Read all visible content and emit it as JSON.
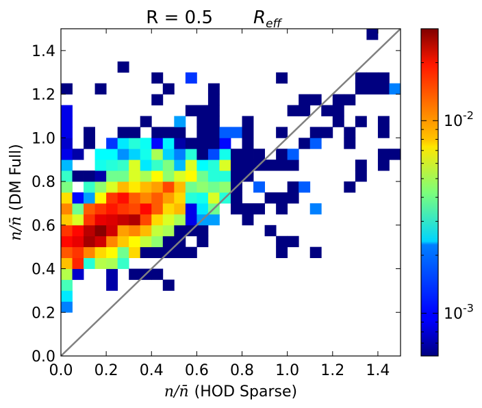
{
  "chart_data": {
    "type": "heatmap",
    "title": "R = 0.5",
    "title_math": "R",
    "title_math_sub": "eff",
    "xlabel_math": "n/n̄",
    "xlabel": "(HOD Sparse)",
    "ylabel_math": "n/n̄",
    "ylabel": "(DM Full)",
    "xlim": [
      0,
      1.5
    ],
    "ylim": [
      0,
      1.5
    ],
    "bin_size": 0.05,
    "xticks": [
      "0.0",
      "0.2",
      "0.4",
      "0.6",
      "0.8",
      "1.0",
      "1.2",
      "1.4"
    ],
    "yticks": [
      "0.0",
      "0.2",
      "0.4",
      "0.6",
      "0.8",
      "1.0",
      "1.2",
      "1.4"
    ],
    "colorbar": {
      "scale": "log",
      "min": 0.0006,
      "max": 0.03,
      "tick_values": [
        0.001,
        0.01
      ],
      "tick_base": "10",
      "tick_exponents": [
        "-3",
        "-2"
      ],
      "colormap": "jet"
    },
    "diagonal_line": {
      "from": [
        0,
        0
      ],
      "to": [
        1.5,
        1.5
      ],
      "color": "#808080"
    },
    "cells": [
      [
        0.0,
        0.2,
        0.0016
      ],
      [
        0.0,
        0.25,
        0.0024
      ],
      [
        0.0,
        0.3,
        0.0034
      ],
      [
        0.0,
        0.35,
        0.0052
      ],
      [
        0.0,
        0.4,
        0.0088
      ],
      [
        0.0,
        0.45,
        0.0132
      ],
      [
        0.0,
        0.5,
        0.018
      ],
      [
        0.0,
        0.55,
        0.015
      ],
      [
        0.0,
        0.6,
        0.0085
      ],
      [
        0.0,
        0.65,
        0.011
      ],
      [
        0.0,
        0.7,
        0.0078
      ],
      [
        0.0,
        0.75,
        0.0042
      ],
      [
        0.0,
        0.8,
        0.0032
      ],
      [
        0.0,
        0.85,
        0.002
      ],
      [
        0.0,
        0.9,
        0.0009
      ],
      [
        0.0,
        0.95,
        0.0008
      ],
      [
        0.0,
        1.0,
        0.0009
      ],
      [
        0.0,
        1.05,
        0.0009
      ],
      [
        0.0,
        1.1,
        0.0009
      ],
      [
        0.0,
        1.2,
        0.0006
      ],
      [
        0.05,
        0.35,
        0.0008
      ],
      [
        0.05,
        0.4,
        0.016
      ],
      [
        0.05,
        0.45,
        0.015
      ],
      [
        0.05,
        0.5,
        0.02
      ],
      [
        0.05,
        0.55,
        0.018
      ],
      [
        0.05,
        0.6,
        0.006
      ],
      [
        0.05,
        0.65,
        0.004
      ],
      [
        0.05,
        0.7,
        0.001
      ],
      [
        0.05,
        0.8,
        0.0006
      ],
      [
        0.05,
        0.9,
        0.0007
      ],
      [
        0.1,
        0.4,
        0.003
      ],
      [
        0.1,
        0.45,
        0.011
      ],
      [
        0.1,
        0.5,
        0.026
      ],
      [
        0.1,
        0.55,
        0.024
      ],
      [
        0.1,
        0.6,
        0.015
      ],
      [
        0.1,
        0.65,
        0.013
      ],
      [
        0.1,
        0.7,
        0.0018
      ],
      [
        0.1,
        0.75,
        0.0032
      ],
      [
        0.1,
        0.8,
        0.0006
      ],
      [
        0.1,
        0.95,
        0.0006
      ],
      [
        0.1,
        1.0,
        0.0006
      ],
      [
        0.15,
        0.4,
        0.0052
      ],
      [
        0.15,
        0.45,
        0.008
      ],
      [
        0.15,
        0.5,
        0.022
      ],
      [
        0.15,
        0.55,
        0.029
      ],
      [
        0.15,
        0.6,
        0.02
      ],
      [
        0.15,
        0.65,
        0.015
      ],
      [
        0.15,
        0.7,
        0.007
      ],
      [
        0.15,
        0.75,
        0.0045
      ],
      [
        0.15,
        0.8,
        0.0007
      ],
      [
        0.15,
        0.85,
        0.0028
      ],
      [
        0.15,
        0.9,
        0.0026
      ],
      [
        0.15,
        1.2,
        0.0006
      ],
      [
        0.2,
        0.3,
        0.0007
      ],
      [
        0.2,
        0.35,
        0.0007
      ],
      [
        0.2,
        0.4,
        0.005
      ],
      [
        0.2,
        0.45,
        0.007
      ],
      [
        0.2,
        0.5,
        0.011
      ],
      [
        0.2,
        0.55,
        0.022
      ],
      [
        0.2,
        0.6,
        0.021
      ],
      [
        0.2,
        0.65,
        0.017
      ],
      [
        0.2,
        0.7,
        0.015
      ],
      [
        0.2,
        0.75,
        0.006
      ],
      [
        0.2,
        0.8,
        0.004
      ],
      [
        0.2,
        0.85,
        0.003
      ],
      [
        0.2,
        0.9,
        0.0026
      ],
      [
        0.2,
        0.95,
        0.0012
      ],
      [
        0.25,
        0.4,
        0.0032
      ],
      [
        0.25,
        0.45,
        0.004
      ],
      [
        0.25,
        0.5,
        0.0085
      ],
      [
        0.25,
        0.55,
        0.01
      ],
      [
        0.25,
        0.6,
        0.023
      ],
      [
        0.25,
        0.65,
        0.015
      ],
      [
        0.25,
        0.7,
        0.0175
      ],
      [
        0.25,
        0.75,
        0.009
      ],
      [
        0.25,
        0.8,
        0.004
      ],
      [
        0.25,
        0.85,
        0.0032
      ],
      [
        0.25,
        0.9,
        0.0017
      ],
      [
        0.25,
        0.95,
        0.0024
      ],
      [
        0.25,
        1.0,
        0.0006
      ],
      [
        0.25,
        1.3,
        0.0006
      ],
      [
        0.3,
        0.35,
        0.0006
      ],
      [
        0.3,
        0.45,
        0.008
      ],
      [
        0.3,
        0.5,
        0.007
      ],
      [
        0.3,
        0.55,
        0.011
      ],
      [
        0.3,
        0.6,
        0.025
      ],
      [
        0.3,
        0.65,
        0.014
      ],
      [
        0.3,
        0.7,
        0.013
      ],
      [
        0.3,
        0.75,
        0.0075
      ],
      [
        0.3,
        0.8,
        0.006
      ],
      [
        0.3,
        0.85,
        0.006
      ],
      [
        0.3,
        0.9,
        0.0022
      ],
      [
        0.3,
        0.95,
        0.003
      ],
      [
        0.3,
        1.0,
        0.0006
      ],
      [
        0.35,
        0.35,
        0.0006
      ],
      [
        0.35,
        0.45,
        0.0006
      ],
      [
        0.35,
        0.5,
        0.0055
      ],
      [
        0.35,
        0.55,
        0.009
      ],
      [
        0.35,
        0.6,
        0.014
      ],
      [
        0.35,
        0.65,
        0.018
      ],
      [
        0.35,
        0.7,
        0.011
      ],
      [
        0.35,
        0.75,
        0.009
      ],
      [
        0.35,
        0.8,
        0.005
      ],
      [
        0.35,
        0.85,
        0.0024
      ],
      [
        0.35,
        0.9,
        0.0028
      ],
      [
        0.35,
        0.95,
        0.0027
      ],
      [
        0.35,
        1.05,
        0.0006
      ],
      [
        0.4,
        0.35,
        0.0006
      ],
      [
        0.4,
        0.45,
        0.0006
      ],
      [
        0.4,
        0.5,
        0.0045
      ],
      [
        0.4,
        0.55,
        0.0055
      ],
      [
        0.4,
        0.6,
        0.008
      ],
      [
        0.4,
        0.65,
        0.013
      ],
      [
        0.4,
        0.7,
        0.013
      ],
      [
        0.4,
        0.75,
        0.01
      ],
      [
        0.4,
        0.8,
        0.007
      ],
      [
        0.4,
        0.85,
        0.0032
      ],
      [
        0.4,
        0.9,
        0.005
      ],
      [
        0.4,
        0.95,
        0.001
      ],
      [
        0.4,
        1.0,
        0.0006
      ],
      [
        0.4,
        1.15,
        0.0006
      ],
      [
        0.4,
        1.25,
        0.0006
      ],
      [
        0.45,
        0.3,
        0.0006
      ],
      [
        0.45,
        0.45,
        0.0006
      ],
      [
        0.45,
        0.5,
        0.0006
      ],
      [
        0.45,
        0.55,
        0.005
      ],
      [
        0.45,
        0.6,
        0.006
      ],
      [
        0.45,
        0.65,
        0.008
      ],
      [
        0.45,
        0.7,
        0.01
      ],
      [
        0.45,
        0.75,
        0.014
      ],
      [
        0.45,
        0.8,
        0.0045
      ],
      [
        0.45,
        0.85,
        0.0042
      ],
      [
        0.45,
        0.9,
        0.0022
      ],
      [
        0.45,
        0.95,
        0.0025
      ],
      [
        0.45,
        1.0,
        0.0006
      ],
      [
        0.45,
        1.2,
        0.0006
      ],
      [
        0.5,
        0.45,
        0.0006
      ],
      [
        0.5,
        0.5,
        0.0006
      ],
      [
        0.5,
        0.55,
        0.0006
      ],
      [
        0.5,
        0.6,
        0.005
      ],
      [
        0.5,
        0.65,
        0.009
      ],
      [
        0.5,
        0.7,
        0.008
      ],
      [
        0.5,
        0.75,
        0.009
      ],
      [
        0.5,
        0.8,
        0.006
      ],
      [
        0.5,
        0.85,
        0.002
      ],
      [
        0.5,
        0.9,
        0.0016
      ],
      [
        0.5,
        0.95,
        0.0007
      ],
      [
        0.5,
        1.0,
        0.0006
      ],
      [
        0.5,
        1.05,
        0.0018
      ],
      [
        0.55,
        0.45,
        0.0006
      ],
      [
        0.55,
        0.55,
        0.0006
      ],
      [
        0.55,
        0.6,
        0.0009
      ],
      [
        0.55,
        0.65,
        0.0009
      ],
      [
        0.55,
        0.7,
        0.003
      ],
      [
        0.55,
        0.75,
        0.004
      ],
      [
        0.55,
        0.8,
        0.007
      ],
      [
        0.55,
        0.85,
        0.006
      ],
      [
        0.55,
        0.9,
        0.003
      ],
      [
        0.55,
        0.95,
        0.0006
      ],
      [
        0.55,
        1.1,
        0.0006
      ],
      [
        0.55,
        1.25,
        0.0012
      ],
      [
        0.6,
        0.5,
        0.0006
      ],
      [
        0.6,
        0.55,
        0.0006
      ],
      [
        0.6,
        0.6,
        0.0018
      ],
      [
        0.6,
        0.65,
        0.0024
      ],
      [
        0.6,
        0.7,
        0.0028
      ],
      [
        0.6,
        0.75,
        0.0045
      ],
      [
        0.6,
        0.8,
        0.004
      ],
      [
        0.6,
        0.85,
        0.0026
      ],
      [
        0.6,
        0.9,
        0.0006
      ],
      [
        0.6,
        0.95,
        0.0006
      ],
      [
        0.6,
        1.0,
        0.0006
      ],
      [
        0.6,
        1.05,
        0.0006
      ],
      [
        0.6,
        1.1,
        0.0006
      ],
      [
        0.65,
        0.6,
        0.0018
      ],
      [
        0.65,
        0.65,
        0.004
      ],
      [
        0.65,
        0.7,
        0.006
      ],
      [
        0.65,
        0.75,
        0.004
      ],
      [
        0.65,
        0.8,
        0.003
      ],
      [
        0.65,
        0.85,
        0.003
      ],
      [
        0.65,
        0.9,
        0.0013
      ],
      [
        0.65,
        0.95,
        0.0006
      ],
      [
        0.65,
        1.0,
        0.0006
      ],
      [
        0.65,
        1.05,
        0.0006
      ],
      [
        0.65,
        1.1,
        0.0006
      ],
      [
        0.65,
        1.15,
        0.0006
      ],
      [
        0.65,
        1.2,
        0.0006
      ],
      [
        0.7,
        0.7,
        0.003
      ],
      [
        0.7,
        0.75,
        0.0045
      ],
      [
        0.7,
        0.8,
        0.003
      ],
      [
        0.7,
        0.85,
        0.006
      ],
      [
        0.7,
        0.9,
        0.0028
      ],
      [
        0.7,
        0.95,
        0.001
      ],
      [
        0.7,
        1.0,
        0.0014
      ],
      [
        0.7,
        1.5,
        0.0006
      ],
      [
        0.75,
        0.65,
        0.0006
      ],
      [
        0.75,
        0.7,
        0.0006
      ],
      [
        0.75,
        0.75,
        0.0006
      ],
      [
        0.75,
        0.8,
        0.0006
      ],
      [
        0.75,
        0.85,
        0.0006
      ],
      [
        0.75,
        0.9,
        0.0006
      ],
      [
        0.75,
        1.0,
        0.0014
      ],
      [
        0.8,
        0.6,
        0.0006
      ],
      [
        0.8,
        0.65,
        0.0006
      ],
      [
        0.8,
        0.8,
        0.0006
      ],
      [
        0.8,
        0.85,
        0.0006
      ],
      [
        0.8,
        0.9,
        0.0006
      ],
      [
        0.8,
        0.95,
        0.0006
      ],
      [
        0.8,
        1.0,
        0.0006
      ],
      [
        0.8,
        1.05,
        0.0006
      ],
      [
        0.85,
        0.65,
        0.0006
      ],
      [
        0.85,
        0.75,
        0.0014
      ],
      [
        0.85,
        0.85,
        0.0006
      ],
      [
        0.85,
        0.9,
        0.0006
      ],
      [
        0.9,
        0.55,
        0.0006
      ],
      [
        0.9,
        0.7,
        0.0006
      ],
      [
        0.9,
        0.85,
        0.0006
      ],
      [
        0.95,
        0.45,
        0.0006
      ],
      [
        0.95,
        0.5,
        0.0006
      ],
      [
        0.95,
        0.65,
        0.0006
      ],
      [
        0.95,
        0.7,
        0.0006
      ],
      [
        0.95,
        0.85,
        0.0006
      ],
      [
        0.95,
        0.9,
        0.0006
      ],
      [
        0.95,
        1.0,
        0.0006
      ],
      [
        0.95,
        1.25,
        0.0006
      ],
      [
        1.0,
        0.5,
        0.0006
      ],
      [
        1.0,
        0.7,
        0.0006
      ],
      [
        1.0,
        0.75,
        0.0006
      ],
      [
        1.0,
        0.85,
        0.0006
      ],
      [
        1.0,
        0.9,
        0.0014
      ],
      [
        1.0,
        1.1,
        0.0006
      ],
      [
        1.05,
        0.75,
        0.0014
      ],
      [
        1.05,
        0.95,
        0.0006
      ],
      [
        1.05,
        1.1,
        0.0006
      ],
      [
        1.05,
        1.15,
        0.0006
      ],
      [
        1.1,
        0.45,
        0.0006
      ],
      [
        1.1,
        0.65,
        0.0016
      ],
      [
        1.1,
        0.95,
        0.0014
      ],
      [
        1.1,
        1.0,
        0.0006
      ],
      [
        1.1,
        1.15,
        0.0006
      ],
      [
        1.15,
        1.0,
        0.0006
      ],
      [
        1.15,
        1.1,
        0.0006
      ],
      [
        1.2,
        1.05,
        0.0006
      ],
      [
        1.2,
        1.1,
        0.0006
      ],
      [
        1.2,
        1.15,
        0.0006
      ],
      [
        1.25,
        0.75,
        0.0006
      ],
      [
        1.25,
        0.95,
        0.0006
      ],
      [
        1.25,
        1.0,
        0.0006
      ],
      [
        1.25,
        1.15,
        0.0006
      ],
      [
        1.3,
        0.8,
        0.0006
      ],
      [
        1.3,
        0.85,
        0.0006
      ],
      [
        1.3,
        1.05,
        0.0006
      ],
      [
        1.3,
        1.2,
        0.0006
      ],
      [
        1.3,
        1.25,
        0.0006
      ],
      [
        1.35,
        1.2,
        0.0006
      ],
      [
        1.35,
        1.25,
        0.0006
      ],
      [
        1.35,
        1.45,
        0.0006
      ],
      [
        1.4,
        0.85,
        0.0006
      ],
      [
        1.4,
        0.9,
        0.0006
      ],
      [
        1.4,
        1.0,
        0.0006
      ],
      [
        1.4,
        1.05,
        0.0006
      ],
      [
        1.4,
        1.2,
        0.0006
      ],
      [
        1.4,
        1.25,
        0.0006
      ],
      [
        1.45,
        0.9,
        0.0006
      ],
      [
        1.45,
        1.2,
        0.0016
      ]
    ]
  }
}
